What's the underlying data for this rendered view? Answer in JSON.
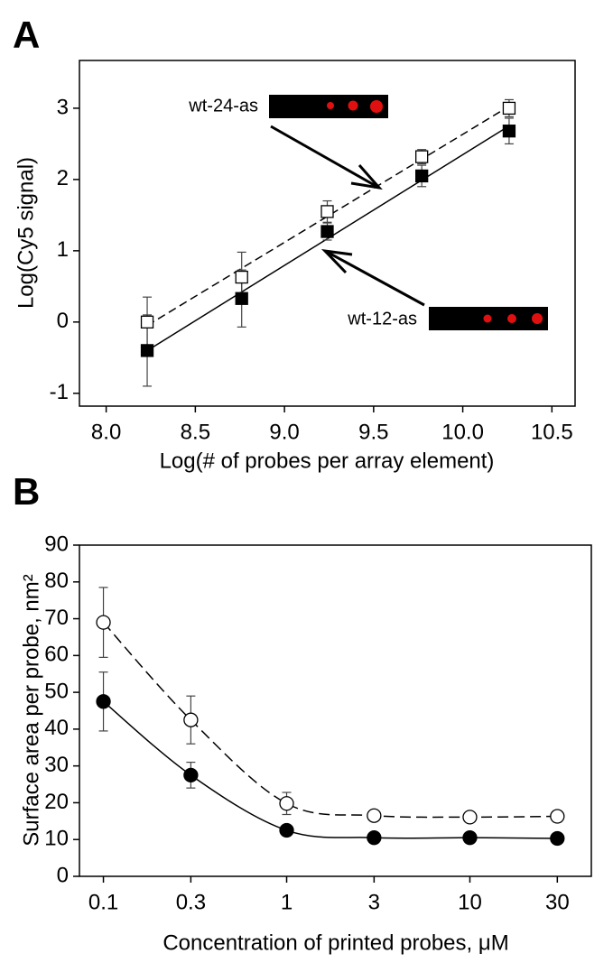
{
  "chart_data": [
    {
      "type": "scatter",
      "panel_label": "A",
      "fit": "linear",
      "x_label": "Log(# of probes per array element)",
      "y_label": "Log(Cy5 signal)",
      "x": [
        8.23,
        8.76,
        9.24,
        9.77,
        10.26
      ],
      "series": [
        {
          "name": "wt-24-as",
          "color": "#000000",
          "marker": "square",
          "filled": false,
          "dashed": true,
          "values": [
            0.0,
            0.63,
            1.55,
            2.32,
            3.0
          ],
          "errors": [
            0.35,
            0.35,
            0.15,
            0.1,
            0.12
          ]
        },
        {
          "name": "wt-12-as",
          "color": "#000000",
          "marker": "square",
          "filled": true,
          "dashed": false,
          "values": [
            -0.4,
            0.33,
            1.27,
            2.05,
            2.68
          ],
          "errors": [
            0.5,
            0.4,
            0.12,
            0.15,
            0.18
          ]
        }
      ],
      "xlim": [
        7.85,
        10.63
      ],
      "xticks": [
        {
          "value": 8,
          "label": "8.0"
        },
        8.5,
        {
          "value": 9,
          "label": "9.0"
        },
        9.5,
        {
          "value": 10,
          "label": "10.0"
        },
        10.5
      ],
      "ylim": [
        -1.18,
        3.67
      ],
      "yticks": [
        -1,
        0,
        1,
        2,
        3
      ],
      "log_x": false
    },
    {
      "type": "line",
      "panel_label": "B",
      "x_label": "Concentration of printed probes, μM",
      "y_label": "Surface area per probe, nm²",
      "x": [
        0.1,
        0.3,
        1,
        3,
        10,
        30
      ],
      "series": [
        {
          "color": "#000000",
          "marker": "circle",
          "filled": false,
          "dashed": true,
          "values": [
            69,
            42.5,
            19.8,
            16.5,
            16.1,
            16.3
          ],
          "errors": [
            9.5,
            6.5,
            3,
            1,
            1,
            1.5
          ]
        },
        {
          "color": "#000000",
          "marker": "circle",
          "filled": true,
          "dashed": false,
          "values": [
            47.5,
            27.5,
            12.5,
            10.5,
            10.5,
            10.3
          ],
          "errors": [
            8,
            3.5,
            1,
            0.5,
            0.5,
            0.5
          ]
        }
      ],
      "xlim": [
        0.074,
        46
      ],
      "xticks": [
        0.1,
        0.3,
        1,
        3,
        10,
        30
      ],
      "log_x": true,
      "ylim": [
        0,
        90
      ],
      "yticks": [
        0,
        10,
        20,
        30,
        40,
        50,
        60,
        70,
        80,
        90
      ]
    }
  ]
}
